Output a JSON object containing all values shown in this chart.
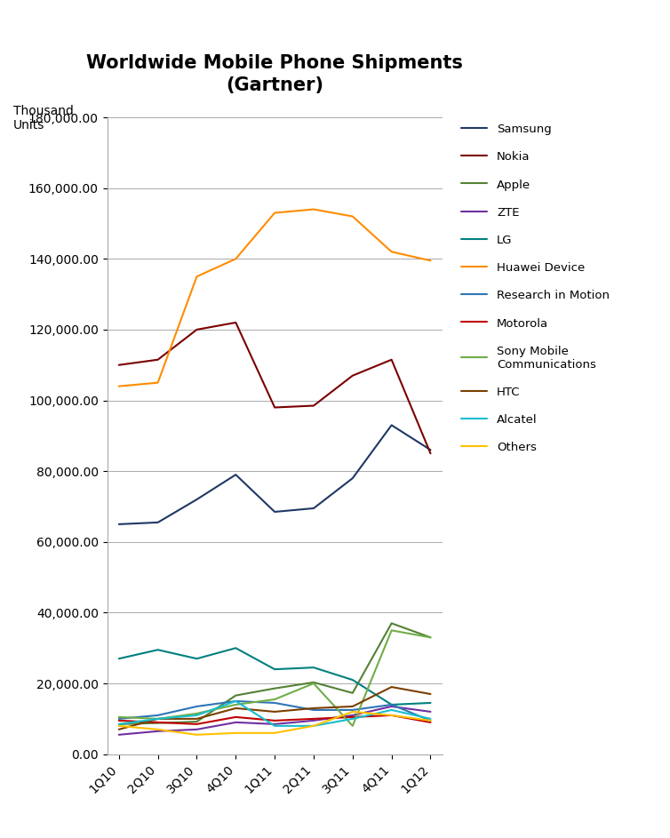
{
  "title": "Worldwide Mobile Phone Shipments\n(Gartner)",
  "ylabel": "Thousand\nUnits",
  "x_labels": [
    "1Q10",
    "2Q10",
    "3Q10",
    "4Q10",
    "1Q11",
    "2Q11",
    "3Q11",
    "4Q11",
    "1Q12"
  ],
  "series": {
    "Samsung": [
      65000,
      65500,
      72000,
      79000,
      68500,
      69500,
      78000,
      93000,
      86000
    ],
    "Nokia": [
      110000,
      111500,
      120000,
      122000,
      98000,
      98500,
      107000,
      111500,
      85000
    ],
    "Apple": [
      8500,
      8800,
      9200,
      16600,
      18600,
      20300,
      17300,
      37000,
      33000
    ],
    "ZTE": [
      5500,
      6500,
      7000,
      9000,
      8500,
      9500,
      11000,
      13500,
      12000
    ],
    "LG": [
      27000,
      29500,
      27000,
      30000,
      24000,
      24500,
      21000,
      14000,
      14500
    ],
    "Huawei Device": [
      104000,
      105000,
      135000,
      140000,
      153000,
      154000,
      152000,
      142000,
      139500
    ],
    "Research in Motion": [
      10000,
      11000,
      13500,
      15000,
      14500,
      12500,
      12500,
      14000,
      9500
    ],
    "Motorola": [
      9500,
      9000,
      8500,
      10500,
      9500,
      10000,
      10500,
      11000,
      9000
    ],
    "Sony Mobile\nCommunications": [
      10500,
      10000,
      11500,
      14000,
      15500,
      20000,
      8000,
      35000,
      33000
    ],
    "HTC": [
      7000,
      10000,
      10000,
      13000,
      12000,
      13000,
      13500,
      19000,
      17000
    ],
    "Alcatel": [
      8500,
      10000,
      11000,
      15000,
      8000,
      8000,
      10000,
      12500,
      10000
    ],
    "Others": [
      8000,
      7000,
      5500,
      6000,
      6000,
      8000,
      12000,
      11000,
      9500
    ]
  },
  "colors": {
    "Samsung": "#1F3864",
    "Nokia": "#7B0000",
    "Apple": "#538135",
    "ZTE": "#7030A0",
    "LG": "#008080",
    "Huawei Device": "#FF8C00",
    "Research in Motion": "#2E75B6",
    "Motorola": "#C00000",
    "Sony Mobile\nCommunications": "#70AD47",
    "HTC": "#7B3F00",
    "Alcatel": "#17BECF",
    "Others": "#FFC000"
  },
  "ylim": [
    0,
    180000
  ],
  "yticks": [
    0,
    20000,
    40000,
    60000,
    80000,
    100000,
    120000,
    140000,
    160000,
    180000
  ],
  "background_color": "#FFFFFF"
}
